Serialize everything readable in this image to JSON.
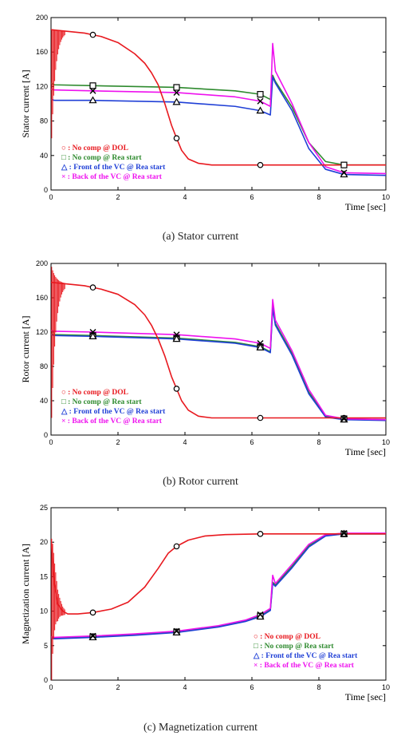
{
  "captions": [
    "(a)  Stator  current",
    "(b)  Rotor  current",
    "(c)  Magnetization  current"
  ],
  "colors": {
    "dol": "#e8191f",
    "nocomp_rea": "#2e8a2e",
    "front_vc": "#1f3fd6",
    "back_vc": "#ee11ee"
  },
  "chart_data": [
    {
      "type": "line",
      "title": "",
      "xlabel": "Time [sec]",
      "ylabel": "Stator current [A]",
      "xlim": [
        0,
        10
      ],
      "ylim": [
        0,
        200
      ],
      "xticks": [
        0,
        2,
        4,
        6,
        8,
        10
      ],
      "yticks": [
        0,
        40,
        80,
        120,
        160,
        200
      ],
      "grid": false,
      "legend_position": "bottom-left",
      "series": [
        {
          "name": "○ : No comp @ DOL",
          "color": "#e8191f",
          "marker": "circle",
          "x": [
            0,
            0.5,
            1,
            1.25,
            1.5,
            2,
            2.5,
            2.8,
            3.0,
            3.2,
            3.4,
            3.6,
            3.75,
            3.9,
            4.1,
            4.4,
            4.8,
            5.5,
            6.25,
            7,
            8,
            8.75,
            10
          ],
          "y": [
            186,
            184,
            182,
            180,
            178,
            171,
            158,
            147,
            136,
            122,
            100,
            75,
            60,
            46,
            36,
            31,
            29,
            29,
            29,
            29,
            29,
            29,
            29
          ],
          "marker_x": [
            1.25,
            3.75,
            6.25,
            8.75
          ]
        },
        {
          "name": "□ : No comp @ Rea start",
          "color": "#2e8a2e",
          "marker": "square",
          "x": [
            0,
            0.1,
            1.25,
            3.75,
            5.5,
            6.25,
            6.55,
            6.62,
            6.7,
            7.2,
            7.7,
            8.2,
            8.75,
            10
          ],
          "y": [
            124,
            122,
            121,
            119,
            115,
            111,
            105,
            133,
            126,
            96,
            55,
            33,
            29,
            29
          ],
          "marker_x": [
            1.25,
            3.75,
            6.25,
            8.75
          ]
        },
        {
          "name": "△ : Front of the VC @ Rea start",
          "color": "#1f3fd6",
          "marker": "triangle",
          "x": [
            0,
            0.1,
            1.25,
            3.75,
            5.5,
            6.25,
            6.55,
            6.62,
            6.7,
            7.2,
            7.7,
            8.2,
            8.75,
            10
          ],
          "y": [
            105,
            104,
            104,
            102,
            97,
            92,
            87,
            131,
            124,
            92,
            48,
            24,
            18,
            17
          ],
          "marker_x": [
            1.25,
            3.75,
            6.25,
            8.75
          ]
        },
        {
          "name": "× : Back of the VC @ Rea start",
          "color": "#ee11ee",
          "marker": "x",
          "x": [
            0,
            0.1,
            1.25,
            3.75,
            5.5,
            6.25,
            6.55,
            6.62,
            6.7,
            7.2,
            7.7,
            8.2,
            8.75,
            10
          ],
          "y": [
            117,
            116,
            115,
            113,
            108,
            103,
            97,
            170,
            138,
            100,
            55,
            27,
            20,
            19
          ],
          "marker_x": [
            1.25,
            3.75,
            6.25,
            8.75
          ]
        }
      ]
    },
    {
      "type": "line",
      "title": "",
      "xlabel": "Time [sec]",
      "ylabel": "Rotor current [A]",
      "xlim": [
        0,
        10
      ],
      "ylim": [
        0,
        200
      ],
      "xticks": [
        0,
        2,
        4,
        6,
        8,
        10
      ],
      "yticks": [
        0,
        40,
        80,
        120,
        160,
        200
      ],
      "grid": false,
      "legend_position": "bottom-left",
      "series": [
        {
          "name": "○ : No comp @ DOL",
          "color": "#e8191f",
          "marker": "circle",
          "x": [
            0,
            0.5,
            1,
            1.25,
            1.5,
            2,
            2.5,
            2.8,
            3.0,
            3.2,
            3.4,
            3.6,
            3.75,
            3.9,
            4.1,
            4.4,
            4.8,
            5.5,
            6.25,
            7,
            8,
            8.75,
            10
          ],
          "y": [
            178,
            176,
            174,
            172,
            170,
            164,
            152,
            140,
            128,
            112,
            92,
            68,
            54,
            40,
            29,
            22,
            20,
            20,
            20,
            20,
            20,
            20,
            20
          ],
          "marker_x": [
            1.25,
            3.75,
            6.25,
            8.75
          ]
        },
        {
          "name": "□ : No comp @ Rea start",
          "color": "#2e8a2e",
          "marker": "square",
          "x": [
            0,
            0.1,
            1.25,
            3.75,
            5.5,
            6.25,
            6.55,
            6.62,
            6.7,
            7.2,
            7.7,
            8.2,
            8.75,
            10
          ],
          "y": [
            118,
            117,
            116,
            113,
            108,
            103,
            97,
            150,
            130,
            95,
            50,
            22,
            19,
            18
          ],
          "marker_x": [
            1.25,
            3.75,
            6.25,
            8.75
          ]
        },
        {
          "name": "△ : Front of the VC @ Rea start",
          "color": "#1f3fd6",
          "marker": "triangle",
          "x": [
            0,
            0.1,
            1.25,
            3.75,
            5.5,
            6.25,
            6.55,
            6.62,
            6.7,
            7.2,
            7.7,
            8.2,
            8.75,
            10
          ],
          "y": [
            117,
            116,
            115,
            112,
            107,
            102,
            96,
            148,
            128,
            93,
            48,
            21,
            18,
            17
          ],
          "marker_x": [
            1.25,
            3.75,
            6.25,
            8.75
          ]
        },
        {
          "name": "× : Back of the VC @ Rea start",
          "color": "#ee11ee",
          "marker": "x",
          "x": [
            0,
            0.1,
            1.25,
            3.75,
            5.5,
            6.25,
            6.55,
            6.62,
            6.7,
            7.2,
            7.7,
            8.2,
            8.75,
            10
          ],
          "y": [
            122,
            121,
            120,
            117,
            112,
            107,
            101,
            158,
            134,
            98,
            53,
            23,
            19,
            18
          ],
          "marker_x": [
            1.25,
            3.75,
            6.25,
            8.75
          ]
        }
      ]
    },
    {
      "type": "line",
      "title": "",
      "xlabel": "Time [sec]",
      "ylabel": "Magnetization current [A]",
      "xlim": [
        0,
        10
      ],
      "ylim": [
        0,
        25
      ],
      "xticks": [
        0,
        2,
        4,
        6,
        8,
        10
      ],
      "yticks": [
        0,
        5,
        10,
        15,
        20,
        25
      ],
      "grid": false,
      "legend_position": "bottom-right",
      "series": [
        {
          "name": "○ : No comp @ DOL",
          "color": "#e8191f",
          "marker": "circle",
          "x": [
            0,
            0.1,
            0.2,
            0.35,
            0.5,
            0.8,
            1.25,
            1.8,
            2.3,
            2.8,
            3.2,
            3.5,
            3.75,
            4.1,
            4.6,
            5.2,
            6.25,
            7,
            8,
            8.75,
            10
          ],
          "y": [
            20.5,
            14,
            11,
            10,
            9.6,
            9.6,
            9.8,
            10.3,
            11.3,
            13.5,
            16.2,
            18.4,
            19.4,
            20.3,
            20.9,
            21.1,
            21.2,
            21.2,
            21.2,
            21.2,
            21.2
          ],
          "marker_x": [
            1.25,
            3.75,
            6.25,
            8.75
          ]
        },
        {
          "name": "□ : No comp @ Rea start",
          "color": "#2e8a2e",
          "marker": "square",
          "x": [
            0,
            0.1,
            1.25,
            2.5,
            3.75,
            5,
            5.8,
            6.25,
            6.55,
            6.62,
            6.7,
            7.2,
            7.7,
            8.2,
            8.75,
            10
          ],
          "y": [
            6.2,
            6.1,
            6.3,
            6.6,
            7.0,
            7.8,
            8.6,
            9.3,
            10.2,
            14.2,
            13.8,
            16.5,
            19.5,
            21.0,
            21.2,
            21.2
          ],
          "marker_x": [
            1.25,
            3.75,
            6.25,
            8.75
          ]
        },
        {
          "name": "△ : Front of the VC @ Rea start",
          "color": "#1f3fd6",
          "marker": "triangle",
          "x": [
            0,
            0.1,
            1.25,
            2.5,
            3.75,
            5,
            5.8,
            6.25,
            6.55,
            6.62,
            6.7,
            7.2,
            7.7,
            8.2,
            8.75,
            10
          ],
          "y": [
            6.1,
            6.0,
            6.2,
            6.5,
            6.9,
            7.7,
            8.5,
            9.2,
            10.1,
            14.0,
            13.6,
            16.3,
            19.3,
            20.9,
            21.2,
            21.2
          ],
          "marker_x": [
            1.25,
            3.75,
            6.25,
            8.75
          ]
        },
        {
          "name": "× : Back of the VC @ Rea start",
          "color": "#ee11ee",
          "marker": "x",
          "x": [
            0,
            0.1,
            1.25,
            2.5,
            3.75,
            5,
            5.8,
            6.25,
            6.55,
            6.62,
            6.7,
            7.2,
            7.7,
            8.2,
            8.75,
            10
          ],
          "y": [
            6.3,
            6.2,
            6.4,
            6.7,
            7.1,
            7.9,
            8.7,
            9.5,
            10.4,
            15.2,
            14.0,
            16.8,
            19.7,
            21.1,
            21.3,
            21.3
          ],
          "marker_x": [
            1.25,
            3.75,
            6.25,
            8.75
          ]
        }
      ]
    }
  ]
}
